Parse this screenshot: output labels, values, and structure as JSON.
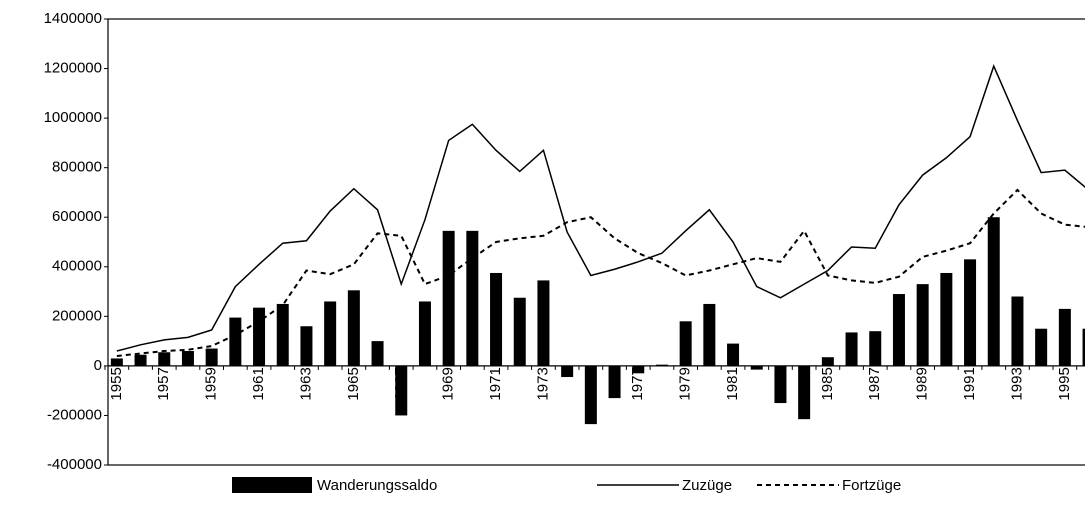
{
  "chart_data": {
    "type": "bar",
    "categories": [
      "1955",
      null,
      "1957",
      null,
      "1959",
      null,
      "1961",
      null,
      "1963",
      null,
      "1965",
      null,
      "1967",
      null,
      "1969",
      null,
      "1971",
      null,
      "1973",
      null,
      "1975",
      null,
      "1977",
      null,
      "1979",
      null,
      "1981",
      null,
      "1983",
      null,
      "1985",
      null,
      "1987",
      null,
      "1989",
      null,
      "1991",
      null,
      "1993",
      null,
      "1995",
      null
    ],
    "series": [
      {
        "name": "Wanderungssaldo",
        "type": "bar",
        "color": "#000000",
        "values": [
          30000,
          45000,
          55000,
          60000,
          70000,
          195000,
          235000,
          250000,
          160000,
          260000,
          305000,
          100000,
          -200000,
          260000,
          545000,
          545000,
          375000,
          275000,
          345000,
          -45000,
          -235000,
          -130000,
          -30000,
          5000,
          180000,
          250000,
          90000,
          -15000,
          -150000,
          -215000,
          35000,
          135000,
          140000,
          290000,
          330000,
          375000,
          430000,
          600000,
          280000,
          150000,
          230000,
          150000
        ]
      },
      {
        "name": "Zuzüge",
        "type": "line",
        "style": "solid",
        "color": "#000000",
        "values": [
          60000,
          85000,
          105000,
          115000,
          145000,
          320000,
          410000,
          495000,
          505000,
          625000,
          715000,
          630000,
          330000,
          590000,
          910000,
          975000,
          870000,
          785000,
          870000,
          540000,
          365000,
          390000,
          420000,
          455000,
          545000,
          630000,
          500000,
          320000,
          275000,
          330000,
          385000,
          480000,
          475000,
          650000,
          770000,
          840000,
          925000,
          1210000,
          990000,
          780000,
          790000,
          710000
        ]
      },
      {
        "name": "Fortzüge",
        "type": "line",
        "style": "dashed",
        "color": "#000000",
        "values": [
          40000,
          50000,
          60000,
          65000,
          80000,
          125000,
          180000,
          245000,
          385000,
          370000,
          410000,
          535000,
          525000,
          330000,
          365000,
          435000,
          500000,
          515000,
          525000,
          580000,
          600000,
          515000,
          455000,
          415000,
          365000,
          385000,
          410000,
          435000,
          420000,
          545000,
          365000,
          345000,
          335000,
          360000,
          440000,
          465000,
          495000,
          615000,
          710000,
          615000,
          570000,
          560000
        ]
      }
    ],
    "ylim": [
      -400000,
      1400000
    ],
    "yticks": [
      -400000,
      -200000,
      0,
      200000,
      400000,
      600000,
      800000,
      1000000,
      1200000,
      1400000
    ],
    "grid": false,
    "legend": "bottom"
  }
}
